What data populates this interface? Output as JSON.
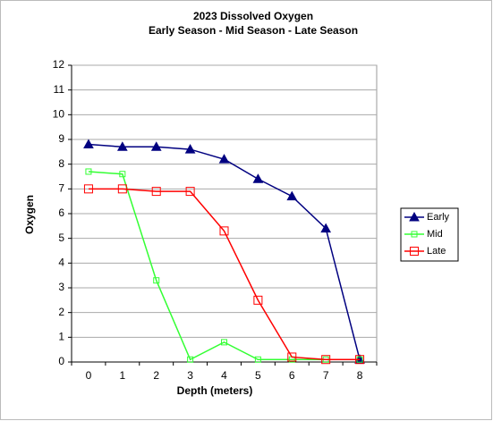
{
  "chart_data": {
    "type": "line",
    "title": "2023  Dissolved Oxygen",
    "subtitle": "Early Season - Mid Season - Late Season",
    "x_label": "Depth (meters)",
    "y_label": "Oxygen",
    "categories": [
      "0",
      "1",
      "2",
      "3",
      "4",
      "5",
      "6",
      "7",
      "8"
    ],
    "series": [
      {
        "name": "Early",
        "color": "#000080",
        "marker": "triangle",
        "values": [
          8.8,
          8.7,
          8.7,
          8.6,
          8.2,
          7.4,
          6.7,
          5.4,
          0.1
        ]
      },
      {
        "name": "Mid",
        "color": "#33ff33",
        "marker": "square",
        "values": [
          7.7,
          7.6,
          3.3,
          0.1,
          0.8,
          0.1,
          0.1,
          0.1,
          0.1
        ]
      },
      {
        "name": "Late",
        "color": "#ff0000",
        "marker": "square",
        "values": [
          7.0,
          7.0,
          6.9,
          6.9,
          5.3,
          2.5,
          0.2,
          0.1,
          0.1
        ]
      }
    ],
    "ylim": [
      0,
      12
    ],
    "yticks": [
      0,
      1,
      2,
      3,
      4,
      5,
      6,
      7,
      8,
      9,
      10,
      11,
      12
    ],
    "grid": true,
    "legend": "right"
  }
}
